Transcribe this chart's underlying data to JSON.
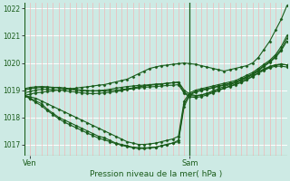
{
  "xlabel": "Pression niveau de la mer( hPa )",
  "ylim": [
    1016.6,
    1022.2
  ],
  "xlim": [
    0,
    46
  ],
  "yticks": [
    1017,
    1018,
    1019,
    1020,
    1021,
    1022
  ],
  "ytick_labels": [
    "1017",
    "1018",
    "1019",
    "1020",
    "1021",
    "1022"
  ],
  "xtick_ven": 1,
  "xtick_sam": 29,
  "vline_x": 29,
  "bg_color": "#cdeae4",
  "line_color": "#1a5c1a",
  "grid_color_h": "#ffffff",
  "grid_color_v": "#f0b8b8",
  "n_vgrid": 46,
  "series": [
    [
      1018.8,
      1018.85,
      1018.9,
      1018.92,
      1018.95,
      1018.97,
      1019.0,
      1019.02,
      1019.05,
      1019.07,
      1019.1,
      1019.12,
      1019.15,
      1019.18,
      1019.2,
      1019.25,
      1019.3,
      1019.35,
      1019.4,
      1019.5,
      1019.6,
      1019.7,
      1019.8,
      1019.85,
      1019.9,
      1019.92,
      1019.95,
      1019.97,
      1020.0,
      1019.97,
      1019.95,
      1019.9,
      1019.85,
      1019.8,
      1019.75,
      1019.7,
      1019.75,
      1019.8,
      1019.85,
      1019.9,
      1020.0,
      1020.2,
      1020.5,
      1020.8,
      1021.2,
      1021.6,
      1022.1
    ],
    [
      1018.8,
      1018.75,
      1018.7,
      1018.6,
      1018.5,
      1018.4,
      1018.3,
      1018.2,
      1018.1,
      1018.0,
      1017.9,
      1017.8,
      1017.7,
      1017.6,
      1017.5,
      1017.4,
      1017.3,
      1017.2,
      1017.1,
      1017.05,
      1017.0,
      1017.0,
      1017.02,
      1017.05,
      1017.1,
      1017.15,
      1017.2,
      1017.3,
      1018.6,
      1018.9,
      1019.0,
      1019.05,
      1019.1,
      1019.15,
      1019.2,
      1019.25,
      1019.3,
      1019.35,
      1019.45,
      1019.55,
      1019.65,
      1019.8,
      1019.95,
      1020.1,
      1020.3,
      1020.6,
      1021.0
    ],
    [
      1018.8,
      1018.7,
      1018.6,
      1018.5,
      1018.3,
      1018.15,
      1018.0,
      1017.9,
      1017.8,
      1017.7,
      1017.6,
      1017.5,
      1017.4,
      1017.3,
      1017.25,
      1017.15,
      1017.05,
      1017.0,
      1016.95,
      1016.9,
      1016.88,
      1016.87,
      1016.88,
      1016.9,
      1016.95,
      1017.0,
      1017.05,
      1017.15,
      1018.5,
      1018.85,
      1018.95,
      1019.0,
      1019.05,
      1019.1,
      1019.15,
      1019.2,
      1019.25,
      1019.3,
      1019.4,
      1019.5,
      1019.6,
      1019.75,
      1019.9,
      1020.05,
      1020.25,
      1020.5,
      1020.9
    ],
    [
      1018.8,
      1018.68,
      1018.55,
      1018.42,
      1018.25,
      1018.1,
      1017.95,
      1017.82,
      1017.72,
      1017.62,
      1017.52,
      1017.42,
      1017.33,
      1017.23,
      1017.17,
      1017.1,
      1017.03,
      1016.97,
      1016.92,
      1016.88,
      1016.85,
      1016.85,
      1016.87,
      1016.9,
      1016.95,
      1017.0,
      1017.05,
      1017.1,
      1018.4,
      1018.82,
      1018.93,
      1018.98,
      1019.03,
      1019.08,
      1019.13,
      1019.18,
      1019.23,
      1019.28,
      1019.38,
      1019.48,
      1019.58,
      1019.72,
      1019.87,
      1020.02,
      1020.2,
      1020.45,
      1020.8
    ],
    [
      1019.0,
      1019.05,
      1019.08,
      1019.1,
      1019.1,
      1019.1,
      1019.1,
      1019.08,
      1019.05,
      1019.02,
      1019.0,
      1018.98,
      1018.97,
      1018.97,
      1018.97,
      1018.98,
      1019.0,
      1019.02,
      1019.05,
      1019.08,
      1019.12,
      1019.15,
      1019.18,
      1019.2,
      1019.22,
      1019.25,
      1019.27,
      1019.3,
      1019.0,
      1018.85,
      1018.8,
      1018.82,
      1018.87,
      1018.93,
      1019.0,
      1019.07,
      1019.13,
      1019.2,
      1019.28,
      1019.38,
      1019.5,
      1019.62,
      1019.75,
      1019.85,
      1019.93,
      1019.95,
      1019.93
    ],
    [
      1018.9,
      1018.95,
      1019.0,
      1019.02,
      1019.03,
      1019.02,
      1019.0,
      1018.98,
      1018.95,
      1018.93,
      1018.9,
      1018.88,
      1018.87,
      1018.88,
      1018.9,
      1018.92,
      1018.95,
      1018.98,
      1019.02,
      1019.05,
      1019.08,
      1019.1,
      1019.12,
      1019.13,
      1019.15,
      1019.17,
      1019.18,
      1019.2,
      1018.88,
      1018.75,
      1018.73,
      1018.76,
      1018.82,
      1018.9,
      1018.98,
      1019.07,
      1019.15,
      1019.22,
      1019.3,
      1019.4,
      1019.52,
      1019.63,
      1019.73,
      1019.82,
      1019.88,
      1019.88,
      1019.85
    ],
    [
      1019.05,
      1019.1,
      1019.12,
      1019.13,
      1019.12,
      1019.1,
      1019.08,
      1019.05,
      1019.03,
      1019.0,
      1018.98,
      1018.97,
      1018.97,
      1018.98,
      1019.0,
      1019.03,
      1019.07,
      1019.1,
      1019.13,
      1019.15,
      1019.17,
      1019.18,
      1019.2,
      1019.22,
      1019.23,
      1019.25,
      1019.27,
      1019.28,
      1018.92,
      1018.8,
      1018.78,
      1018.82,
      1018.88,
      1018.97,
      1019.05,
      1019.13,
      1019.2,
      1019.27,
      1019.35,
      1019.45,
      1019.57,
      1019.68,
      1019.78,
      1019.87,
      1019.93,
      1019.95,
      1019.93
    ]
  ]
}
